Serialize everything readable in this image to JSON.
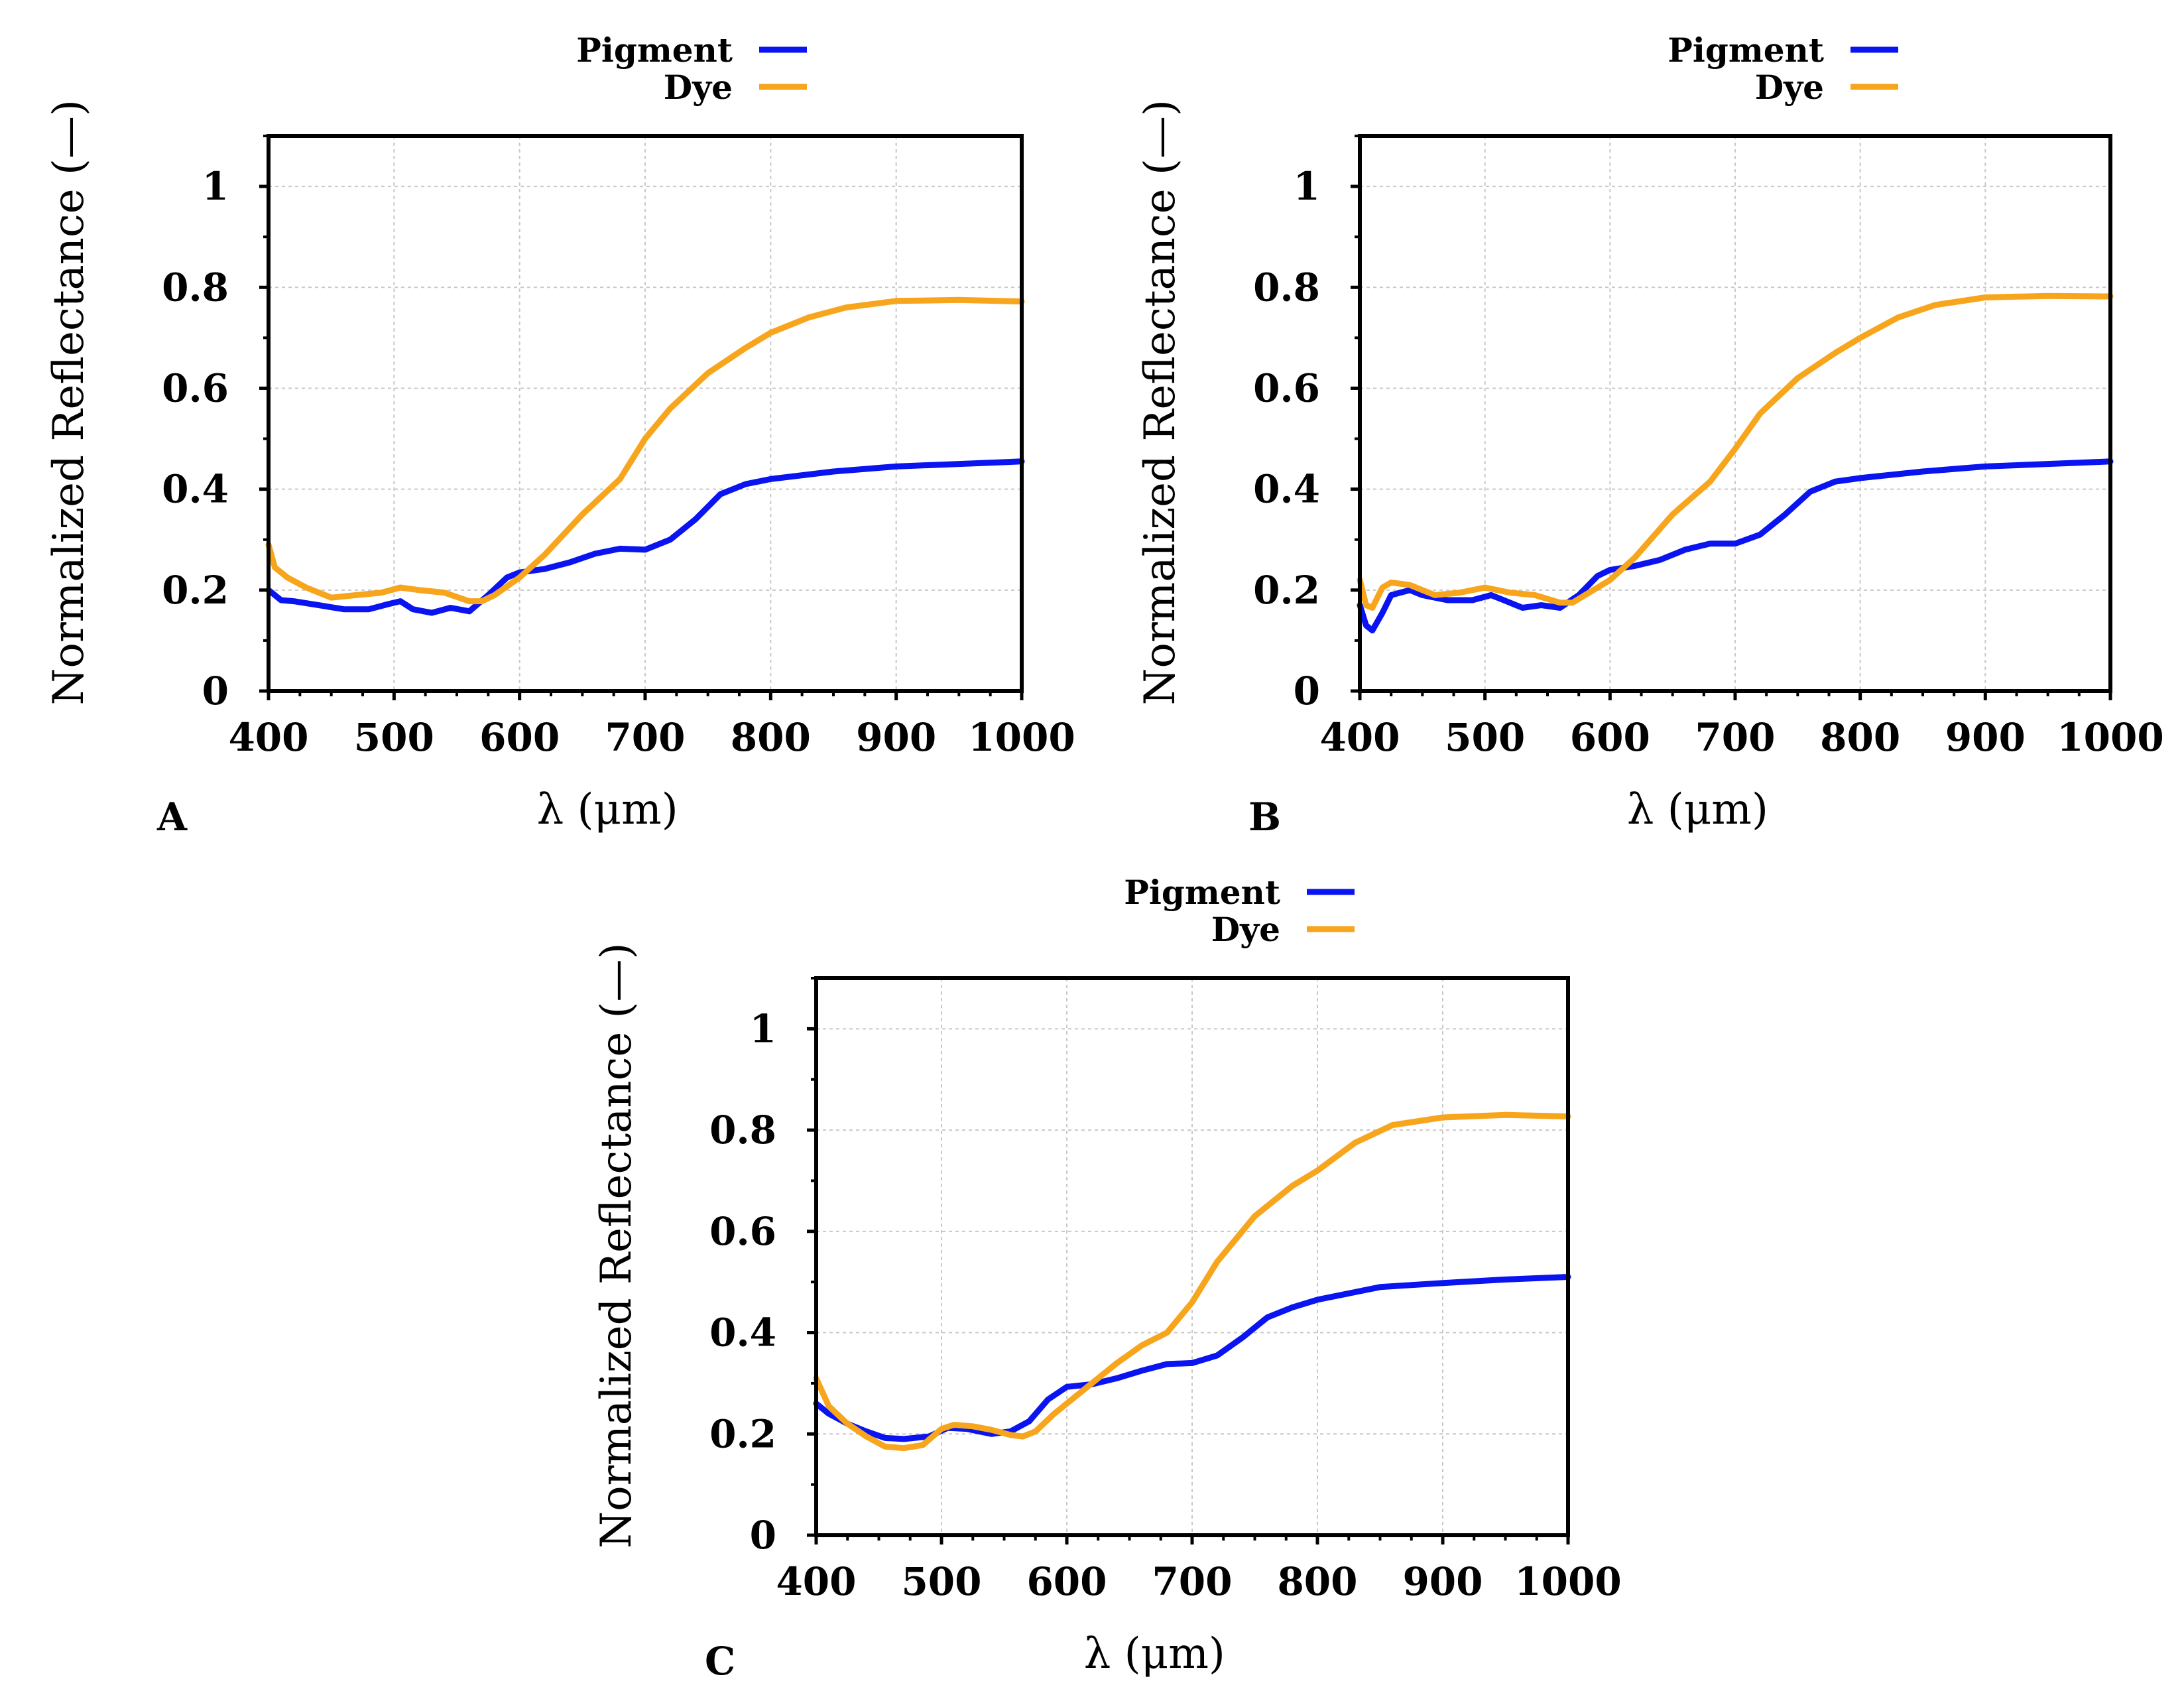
{
  "figure": {
    "colors": {
      "pigment": "#0a14f0",
      "dye": "#f7a51c",
      "grid": "#c8c8c8",
      "axis": "#000000"
    }
  },
  "chart_data": [
    {
      "type": "line",
      "panel_label": "A",
      "title": "",
      "xlabel": "λ (μm)",
      "ylabel": "Normalized Reflectance (—)",
      "xlim": [
        400,
        1000
      ],
      "ylim": [
        0,
        1.1
      ],
      "xticks": [
        400,
        500,
        600,
        700,
        800,
        900,
        1000
      ],
      "yticks": [
        0,
        0.2,
        0.4,
        0.6,
        0.8,
        1
      ],
      "ytick_labels": [
        "0",
        "0.2",
        "0.4",
        "0.6",
        "0.8",
        "1"
      ],
      "grid": true,
      "legend": {
        "location": "above-top-right",
        "entries": [
          "Pigment",
          "Dye"
        ]
      },
      "series": [
        {
          "name": "Pigment",
          "color": "#0a14f0",
          "x": [
            400,
            410,
            420,
            440,
            460,
            480,
            495,
            505,
            515,
            530,
            545,
            560,
            575,
            590,
            600,
            620,
            640,
            660,
            680,
            700,
            720,
            740,
            760,
            780,
            800,
            850,
            900,
            950,
            1000
          ],
          "y": [
            0.2,
            0.18,
            0.178,
            0.17,
            0.162,
            0.162,
            0.172,
            0.178,
            0.162,
            0.155,
            0.165,
            0.158,
            0.19,
            0.225,
            0.235,
            0.242,
            0.255,
            0.272,
            0.282,
            0.28,
            0.3,
            0.34,
            0.39,
            0.41,
            0.42,
            0.435,
            0.445,
            0.45,
            0.455
          ]
        },
        {
          "name": "Dye",
          "color": "#f7a51c",
          "x": [
            400,
            405,
            415,
            430,
            450,
            470,
            490,
            505,
            520,
            540,
            560,
            570,
            580,
            600,
            620,
            650,
            680,
            700,
            720,
            750,
            780,
            800,
            830,
            860,
            900,
            950,
            1000
          ],
          "y": [
            0.29,
            0.245,
            0.225,
            0.205,
            0.185,
            0.19,
            0.195,
            0.205,
            0.2,
            0.195,
            0.178,
            0.178,
            0.19,
            0.225,
            0.27,
            0.35,
            0.42,
            0.5,
            0.56,
            0.63,
            0.68,
            0.71,
            0.74,
            0.76,
            0.773,
            0.775,
            0.772
          ]
        }
      ]
    },
    {
      "type": "line",
      "panel_label": "B",
      "title": "",
      "xlabel": "λ (μm)",
      "ylabel": "Normalized Reflectance (—)",
      "xlim": [
        400,
        1000
      ],
      "ylim": [
        0,
        1.1
      ],
      "xticks": [
        400,
        500,
        600,
        700,
        800,
        900,
        1000
      ],
      "yticks": [
        0,
        0.2,
        0.4,
        0.6,
        0.8,
        1
      ],
      "ytick_labels": [
        "0",
        "0.2",
        "0.4",
        "0.6",
        "0.8",
        "1"
      ],
      "grid": true,
      "legend": {
        "location": "above-top-right",
        "entries": [
          "Pigment",
          "Dye"
        ]
      },
      "series": [
        {
          "name": "Pigment",
          "color": "#0a14f0",
          "x": [
            400,
            405,
            410,
            418,
            425,
            440,
            450,
            470,
            490,
            505,
            515,
            530,
            545,
            560,
            575,
            590,
            600,
            620,
            640,
            660,
            680,
            700,
            720,
            740,
            760,
            780,
            800,
            850,
            900,
            950,
            1000
          ],
          "y": [
            0.17,
            0.13,
            0.12,
            0.155,
            0.19,
            0.2,
            0.19,
            0.18,
            0.18,
            0.19,
            0.18,
            0.165,
            0.17,
            0.165,
            0.19,
            0.228,
            0.24,
            0.248,
            0.26,
            0.28,
            0.292,
            0.292,
            0.31,
            0.35,
            0.395,
            0.415,
            0.422,
            0.435,
            0.445,
            0.45,
            0.455
          ]
        },
        {
          "name": "Dye",
          "color": "#f7a51c",
          "x": [
            400,
            405,
            410,
            418,
            425,
            440,
            450,
            460,
            480,
            500,
            520,
            540,
            560,
            570,
            580,
            600,
            620,
            650,
            680,
            700,
            720,
            750,
            780,
            800,
            830,
            860,
            900,
            950,
            1000
          ],
          "y": [
            0.22,
            0.17,
            0.165,
            0.205,
            0.215,
            0.21,
            0.2,
            0.19,
            0.195,
            0.205,
            0.195,
            0.19,
            0.175,
            0.175,
            0.19,
            0.22,
            0.265,
            0.35,
            0.415,
            0.48,
            0.55,
            0.62,
            0.67,
            0.7,
            0.74,
            0.765,
            0.78,
            0.783,
            0.782
          ]
        }
      ]
    },
    {
      "type": "line",
      "panel_label": "C",
      "title": "",
      "xlabel": "λ (μm)",
      "ylabel": "Normalized Reflectance (—)",
      "xlim": [
        400,
        1000
      ],
      "ylim": [
        0,
        1.1
      ],
      "xticks": [
        400,
        500,
        600,
        700,
        800,
        900,
        1000
      ],
      "yticks": [
        0,
        0.2,
        0.4,
        0.6,
        0.8,
        1
      ],
      "ytick_labels": [
        "0",
        "0.2",
        "0.4",
        "0.6",
        "0.8",
        "1"
      ],
      "grid": true,
      "legend": {
        "location": "above-top-right",
        "entries": [
          "Pigment",
          "Dye"
        ]
      },
      "series": [
        {
          "name": "Pigment",
          "color": "#0a14f0",
          "x": [
            400,
            410,
            425,
            440,
            455,
            470,
            490,
            505,
            520,
            540,
            555,
            570,
            585,
            600,
            620,
            640,
            660,
            680,
            700,
            720,
            740,
            760,
            780,
            800,
            850,
            900,
            950,
            1000
          ],
          "y": [
            0.26,
            0.24,
            0.22,
            0.205,
            0.192,
            0.19,
            0.195,
            0.212,
            0.21,
            0.2,
            0.205,
            0.225,
            0.268,
            0.293,
            0.298,
            0.31,
            0.325,
            0.338,
            0.34,
            0.355,
            0.39,
            0.43,
            0.45,
            0.465,
            0.49,
            0.498,
            0.505,
            0.51
          ]
        },
        {
          "name": "Dye",
          "color": "#f7a51c",
          "x": [
            400,
            410,
            425,
            440,
            455,
            470,
            485,
            500,
            510,
            525,
            540,
            555,
            565,
            575,
            590,
            605,
            620,
            640,
            660,
            680,
            700,
            720,
            750,
            780,
            800,
            830,
            860,
            900,
            950,
            1000
          ],
          "y": [
            0.31,
            0.255,
            0.22,
            0.195,
            0.175,
            0.172,
            0.178,
            0.21,
            0.218,
            0.215,
            0.208,
            0.198,
            0.195,
            0.205,
            0.24,
            0.27,
            0.3,
            0.34,
            0.375,
            0.4,
            0.46,
            0.54,
            0.63,
            0.69,
            0.72,
            0.775,
            0.81,
            0.825,
            0.83,
            0.827
          ]
        }
      ]
    }
  ]
}
